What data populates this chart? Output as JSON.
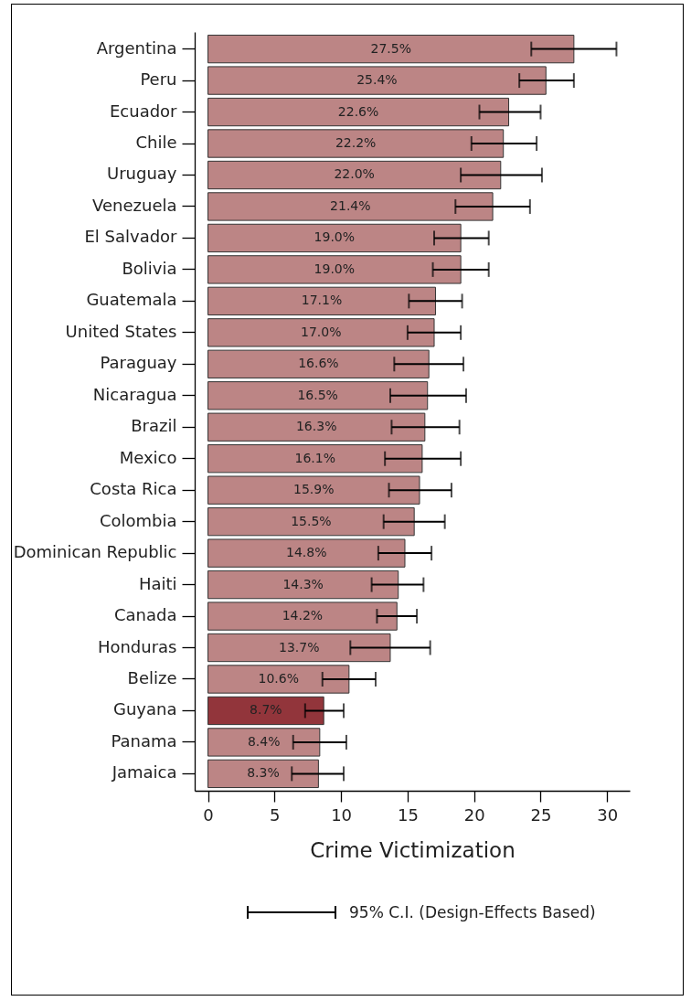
{
  "chart_data": {
    "type": "bar",
    "orientation": "horizontal",
    "xlabel": "Crime Victimization",
    "categories": [
      "Argentina",
      "Peru",
      "Ecuador",
      "Chile",
      "Uruguay",
      "Venezuela",
      "El Salvador",
      "Bolivia",
      "Guatemala",
      "United States",
      "Paraguay",
      "Nicaragua",
      "Brazil",
      "Mexico",
      "Costa Rica",
      "Colombia",
      "Dominican Republic",
      "Haiti",
      "Canada",
      "Honduras",
      "Belize",
      "Guyana",
      "Panama",
      "Jamaica"
    ],
    "values": [
      27.5,
      25.4,
      22.6,
      22.2,
      22.0,
      21.4,
      19.0,
      19.0,
      17.1,
      17.0,
      16.6,
      16.5,
      16.3,
      16.1,
      15.9,
      15.5,
      14.8,
      14.3,
      14.2,
      13.7,
      10.6,
      8.7,
      8.4,
      8.3
    ],
    "value_labels": [
      "27.5%",
      "25.4%",
      "22.6%",
      "22.2%",
      "22.0%",
      "21.4%",
      "19.0%",
      "19.0%",
      "17.1%",
      "17.0%",
      "16.6%",
      "16.5%",
      "16.3%",
      "16.1%",
      "15.9%",
      "15.5%",
      "14.8%",
      "14.3%",
      "14.2%",
      "13.7%",
      "10.6%",
      "8.7%",
      "8.4%",
      "8.3%"
    ],
    "errors": [
      [
        24.3,
        30.7
      ],
      [
        23.4,
        27.5
      ],
      [
        20.4,
        25.0
      ],
      [
        19.8,
        24.7
      ],
      [
        19.0,
        25.1
      ],
      [
        18.6,
        24.2
      ],
      [
        17.0,
        21.1
      ],
      [
        16.9,
        21.1
      ],
      [
        15.1,
        19.1
      ],
      [
        15.0,
        19.0
      ],
      [
        14.0,
        19.2
      ],
      [
        13.7,
        19.4
      ],
      [
        13.8,
        18.9
      ],
      [
        13.3,
        19.0
      ],
      [
        13.6,
        18.3
      ],
      [
        13.2,
        17.8
      ],
      [
        12.8,
        16.8
      ],
      [
        12.3,
        16.2
      ],
      [
        12.7,
        15.7
      ],
      [
        10.7,
        16.7
      ],
      [
        8.6,
        12.6
      ],
      [
        7.3,
        10.2
      ],
      [
        6.4,
        10.4
      ],
      [
        6.3,
        10.2
      ]
    ],
    "colors": [
      "#bc8585",
      "#bc8585",
      "#bc8585",
      "#bc8585",
      "#bc8585",
      "#bc8585",
      "#bc8585",
      "#bc8585",
      "#bc8585",
      "#bc8585",
      "#bc8585",
      "#bc8585",
      "#bc8585",
      "#bc8585",
      "#bc8585",
      "#bc8585",
      "#bc8585",
      "#bc8585",
      "#bc8585",
      "#bc8585",
      "#bc8585",
      "#92353b",
      "#bc8585",
      "#bc8585"
    ],
    "xlim": [
      -1,
      31.7
    ],
    "xticks": [
      0,
      5,
      10,
      15,
      20,
      25,
      30
    ],
    "grid": false,
    "annotations": [
      "95% C.I. (Design-Effects Based)"
    ]
  }
}
